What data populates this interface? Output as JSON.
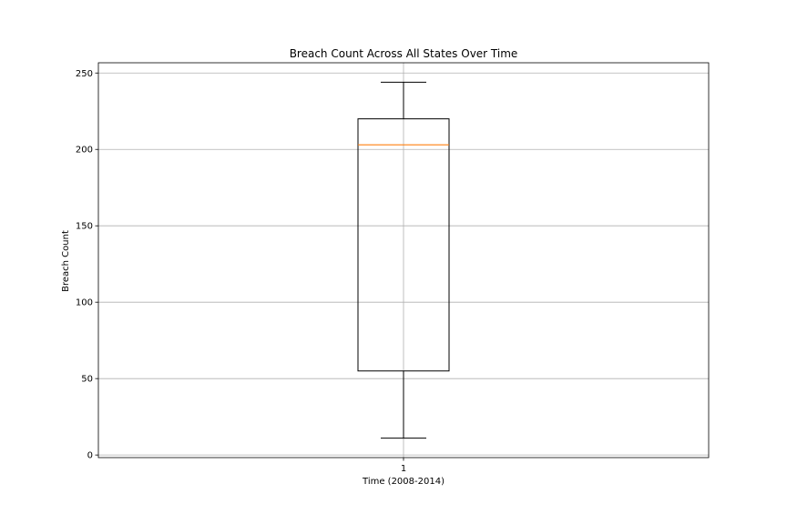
{
  "chart_data": {
    "type": "boxplot",
    "title": "Breach Count Across All States Over Time",
    "xlabel": "Time (2008-2014)",
    "ylabel": "Breach Count",
    "categories": [
      "1"
    ],
    "ylim": [
      -1.7,
      256.7
    ],
    "yticks": [
      0,
      50,
      100,
      150,
      200,
      250
    ],
    "grid": true,
    "boxes": [
      {
        "label": "1",
        "whisker_low": 11,
        "q1": 55,
        "median": 203,
        "q3": 220,
        "whisker_high": 244
      }
    ],
    "colors": {
      "box": "#000000",
      "median": "#ff7f0e",
      "grid": "#b0b0b0"
    }
  }
}
